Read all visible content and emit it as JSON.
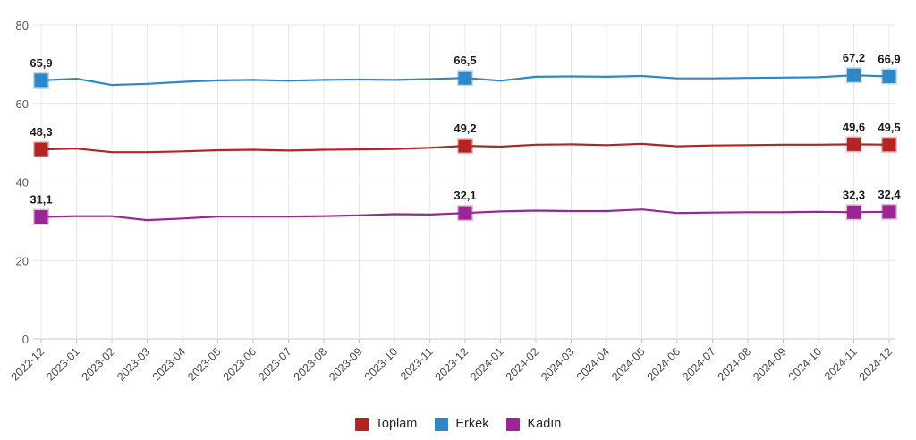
{
  "chart_data": {
    "type": "line",
    "title": "",
    "xlabel": "",
    "ylabel": "",
    "grid": true,
    "legend_position": "bottom",
    "decimal_separator": ",",
    "y_axis": {
      "min": 0,
      "max": 80,
      "ticks": [
        0,
        20,
        40,
        60,
        80
      ]
    },
    "x": [
      "2022-12",
      "2023-01",
      "2023-02",
      "2023-03",
      "2023-04",
      "2023-05",
      "2023-06",
      "2023-07",
      "2023-08",
      "2023-09",
      "2023-10",
      "2023-11",
      "2023-12",
      "2024-01",
      "2024-02",
      "2024-03",
      "2024-04",
      "2024-05",
      "2024-06",
      "2024-07",
      "2024-08",
      "2024-09",
      "2024-10",
      "2024-11",
      "2024-12"
    ],
    "labeled_indices": [
      0,
      12,
      23,
      24
    ],
    "series": [
      {
        "name": "Toplam",
        "color": "#b32424",
        "values": [
          48.3,
          48.5,
          47.6,
          47.6,
          47.8,
          48.1,
          48.2,
          48.0,
          48.2,
          48.3,
          48.4,
          48.7,
          49.2,
          49.0,
          49.5,
          49.6,
          49.4,
          49.7,
          49.1,
          49.3,
          49.4,
          49.5,
          49.5,
          49.6,
          49.5
        ],
        "point_labels": [
          "48,3",
          "49,2",
          "49,6",
          "49,5"
        ]
      },
      {
        "name": "Erkek",
        "color": "#2f87c7",
        "values": [
          65.9,
          66.3,
          64.7,
          65.0,
          65.5,
          65.9,
          66.0,
          65.8,
          66.0,
          66.1,
          66.0,
          66.2,
          66.5,
          65.8,
          66.8,
          66.9,
          66.8,
          67.0,
          66.4,
          66.4,
          66.5,
          66.6,
          66.7,
          67.2,
          66.9
        ],
        "point_labels": [
          "65,9",
          "66,5",
          "67,2",
          "66,9"
        ]
      },
      {
        "name": "Kadın",
        "color": "#9c2596",
        "values": [
          31.1,
          31.3,
          31.3,
          30.3,
          30.7,
          31.2,
          31.2,
          31.2,
          31.3,
          31.5,
          31.8,
          31.7,
          32.1,
          32.5,
          32.7,
          32.6,
          32.6,
          33.0,
          32.1,
          32.2,
          32.3,
          32.3,
          32.4,
          32.3,
          32.4
        ],
        "point_labels": [
          "31,1",
          "32,1",
          "32,3",
          "32,4"
        ]
      }
    ]
  }
}
